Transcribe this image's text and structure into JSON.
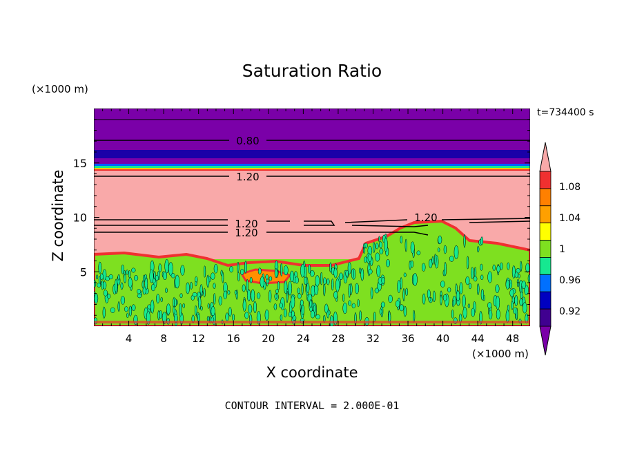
{
  "chart_data": {
    "type": "heatmap",
    "title": "Saturation Ratio",
    "xlabel": "X coordinate",
    "ylabel": "Z coordinate",
    "x_unit": "(×1000 m)",
    "y_unit": "(×1000 m)",
    "time_label": "t=734400 s",
    "footer": "CONTOUR INTERVAL = 2.000E-01",
    "xlim": [
      0,
      50
    ],
    "ylim": [
      0,
      20
    ],
    "x_ticks": [
      "4",
      "8",
      "12",
      "16",
      "20",
      "24",
      "28",
      "32",
      "36",
      "40",
      "44",
      "48"
    ],
    "y_ticks": [
      "5",
      "10",
      "15"
    ],
    "colorbar_labels": [
      "1.08",
      "1.04",
      "1",
      "0.96",
      "0.92"
    ],
    "contour_labels": [
      "0.80",
      "1.20",
      "1.20",
      "1.20",
      "1.20"
    ],
    "colors": {
      "pink": "#f9a9a9",
      "purple": "#7a00a8",
      "dark_blue": "#1a00a8",
      "green": "#7ee020",
      "teal": "#16e890",
      "red": "#f03030"
    }
  }
}
